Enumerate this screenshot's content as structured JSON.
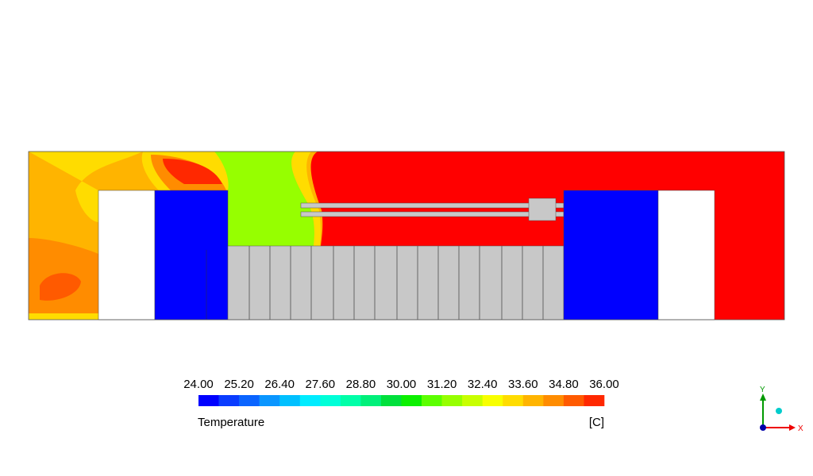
{
  "legend": {
    "title": "Temperature",
    "unit": "[C]",
    "ticks": [
      "24.00",
      "25.20",
      "26.40",
      "27.60",
      "28.80",
      "30.00",
      "31.20",
      "32.40",
      "33.60",
      "34.80",
      "36.00"
    ],
    "colors": [
      "#0000ff",
      "#0a3cff",
      "#0a64ff",
      "#0a96ff",
      "#00c0ff",
      "#00ecff",
      "#00ffd8",
      "#00ffa8",
      "#00f07a",
      "#00e03c",
      "#0cf000",
      "#5cff00",
      "#96ff00",
      "#c8ff00",
      "#f8ff00",
      "#ffdc00",
      "#ffb400",
      "#ff8c00",
      "#ff5a00",
      "#ff2800"
    ]
  },
  "triad": {
    "y": "Y",
    "x": "X"
  }
}
